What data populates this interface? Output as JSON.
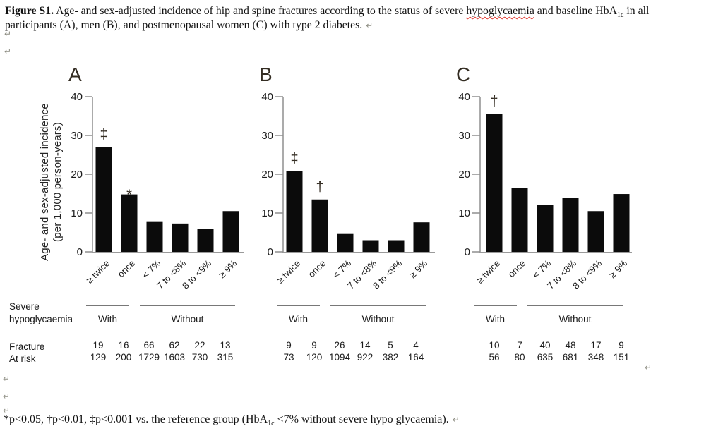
{
  "document": {
    "caption": {
      "bold_label": "Figure S1.",
      "seg1": " Age- and sex-adjusted incidence of hip and spine fractures according to the status of severe ",
      "misspelled_word": "hypoglycaemia",
      "seg2": " and baseline HbA",
      "subscript": "1c",
      "seg3": " in all",
      "line2": "participants (A), men (B), and postmenopausal women (C) with type 2 diabetes.",
      "trailing_mark": "↵"
    },
    "footnote": {
      "seg1": "*p<0.05, †p<0.01, ‡p<0.001 vs. the reference group (HbA",
      "subscript": "1c",
      "seg2": " <7% without severe hypo glycaemia).",
      "trailing_mark": "↵"
    },
    "formatting_marks": {
      "char": "↵"
    }
  },
  "chart_shared": {
    "y_axis_label_line1": "Age- and sex-adjusted incidence",
    "y_axis_label_line2": "(per 1,000 person-years)",
    "severe_label_line1": "Severe",
    "severe_label_line2": "hypoglycaemia",
    "with_label": "With",
    "without_label": "Without",
    "fracture_row_label": "Fracture",
    "at_risk_row_label": "At risk",
    "colors": {
      "bar": "#0b0b0b",
      "axis": "#8f8f8f",
      "baseline": "#9a9a9a",
      "group_line": "#4b4b4b",
      "panel_letter": "#332c22",
      "squiggle": "#e0372e"
    }
  },
  "chart_data": [
    {
      "type": "bar",
      "panel_label": "A",
      "categories": [
        "≥ twice",
        "once",
        "< 7%",
        "7 to <8%",
        "8 to <9%",
        "≥ 9%"
      ],
      "values": [
        27.0,
        14.8,
        7.7,
        7.3,
        6.0,
        10.5
      ],
      "significance": [
        "‡",
        "*",
        "",
        "",
        "",
        ""
      ],
      "fracture": [
        "19",
        "16",
        "66",
        "62",
        "22",
        "13"
      ],
      "at_risk": [
        "129",
        "200",
        "1729",
        "1603",
        "730",
        "315"
      ],
      "ylim": [
        0,
        40
      ],
      "yticks": [
        0,
        10,
        20,
        30,
        40
      ],
      "group_with_categories": [
        "≥ twice",
        "once"
      ],
      "group_without_categories": [
        "< 7%",
        "7 to <8%",
        "8 to <9%",
        "≥ 9%"
      ]
    },
    {
      "type": "bar",
      "panel_label": "B",
      "categories": [
        "≥ twice",
        "once",
        "< 7%",
        "7 to <8%",
        "8 to <9%",
        "≥ 9%"
      ],
      "values": [
        20.8,
        13.5,
        4.6,
        3.0,
        3.0,
        7.6
      ],
      "significance": [
        "‡",
        "†",
        "",
        "",
        "",
        ""
      ],
      "fracture": [
        "9",
        "9",
        "26",
        "14",
        "5",
        "4"
      ],
      "at_risk": [
        "73",
        "120",
        "1094",
        "922",
        "382",
        "164"
      ],
      "ylim": [
        0,
        40
      ],
      "yticks": [
        0,
        10,
        20,
        30,
        40
      ],
      "group_with_categories": [
        "≥ twice",
        "once"
      ],
      "group_without_categories": [
        "< 7%",
        "7 to <8%",
        "8 to <9%",
        "≥ 9%"
      ]
    },
    {
      "type": "bar",
      "panel_label": "C",
      "categories": [
        "≥ twice",
        "once",
        "< 7%",
        "7 to <8%",
        "8 to <9%",
        "≥ 9%"
      ],
      "values": [
        35.5,
        16.5,
        12.1,
        13.9,
        10.5,
        14.9
      ],
      "significance": [
        "†",
        "",
        "",
        "",
        "",
        ""
      ],
      "fracture": [
        "10",
        "7",
        "40",
        "48",
        "17",
        "9"
      ],
      "at_risk": [
        "56",
        "80",
        "635",
        "681",
        "348",
        "151"
      ],
      "ylim": [
        0,
        40
      ],
      "yticks": [
        0,
        10,
        20,
        30,
        40
      ],
      "group_with_categories": [
        "≥ twice",
        "once"
      ],
      "group_without_categories": [
        "< 7%",
        "7 to <8%",
        "8 to <9%",
        "≥ 9%"
      ]
    }
  ]
}
